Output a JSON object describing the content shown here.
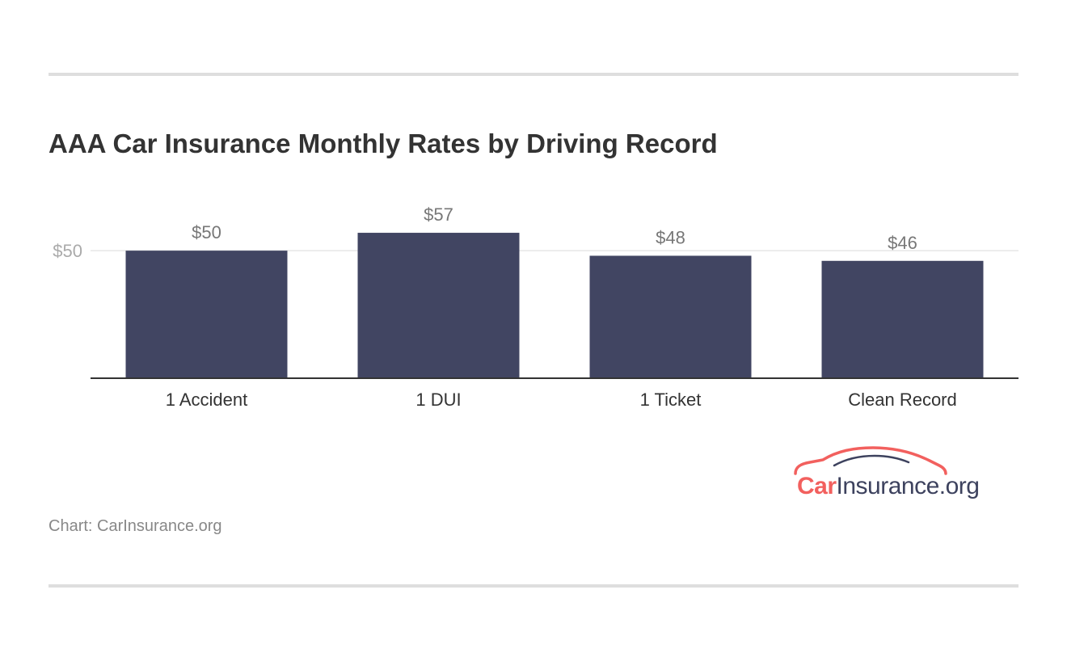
{
  "title": "AAA Car Insurance Monthly Rates by Driving Record",
  "source": "Chart: CarInsurance.org",
  "logo": {
    "part1": "Car",
    "part2": "Insurance.org",
    "icon": "car-silhouette-icon",
    "colors": {
      "accent": "#f2605e",
      "dark": "#3d425e"
    }
  },
  "colors": {
    "bar": "#414562",
    "rule": "#dedede",
    "gridline": "#e6e6e6",
    "axis_label": "#aaaaaa",
    "value_label": "#777777",
    "category_label": "#333333"
  },
  "chart_data": {
    "type": "bar",
    "title": "AAA Car Insurance Monthly Rates by Driving Record",
    "categories": [
      "1 Accident",
      "1 DUI",
      "1 Ticket",
      "Clean Record"
    ],
    "values": [
      50,
      57,
      48,
      46
    ],
    "value_labels": [
      "$50",
      "$57",
      "$48",
      "$46"
    ],
    "ylim": [
      0,
      62
    ],
    "yticks": [
      50
    ],
    "ytick_labels": [
      "$50"
    ],
    "grid": true,
    "legend": "none",
    "xlabel": "",
    "ylabel": ""
  }
}
